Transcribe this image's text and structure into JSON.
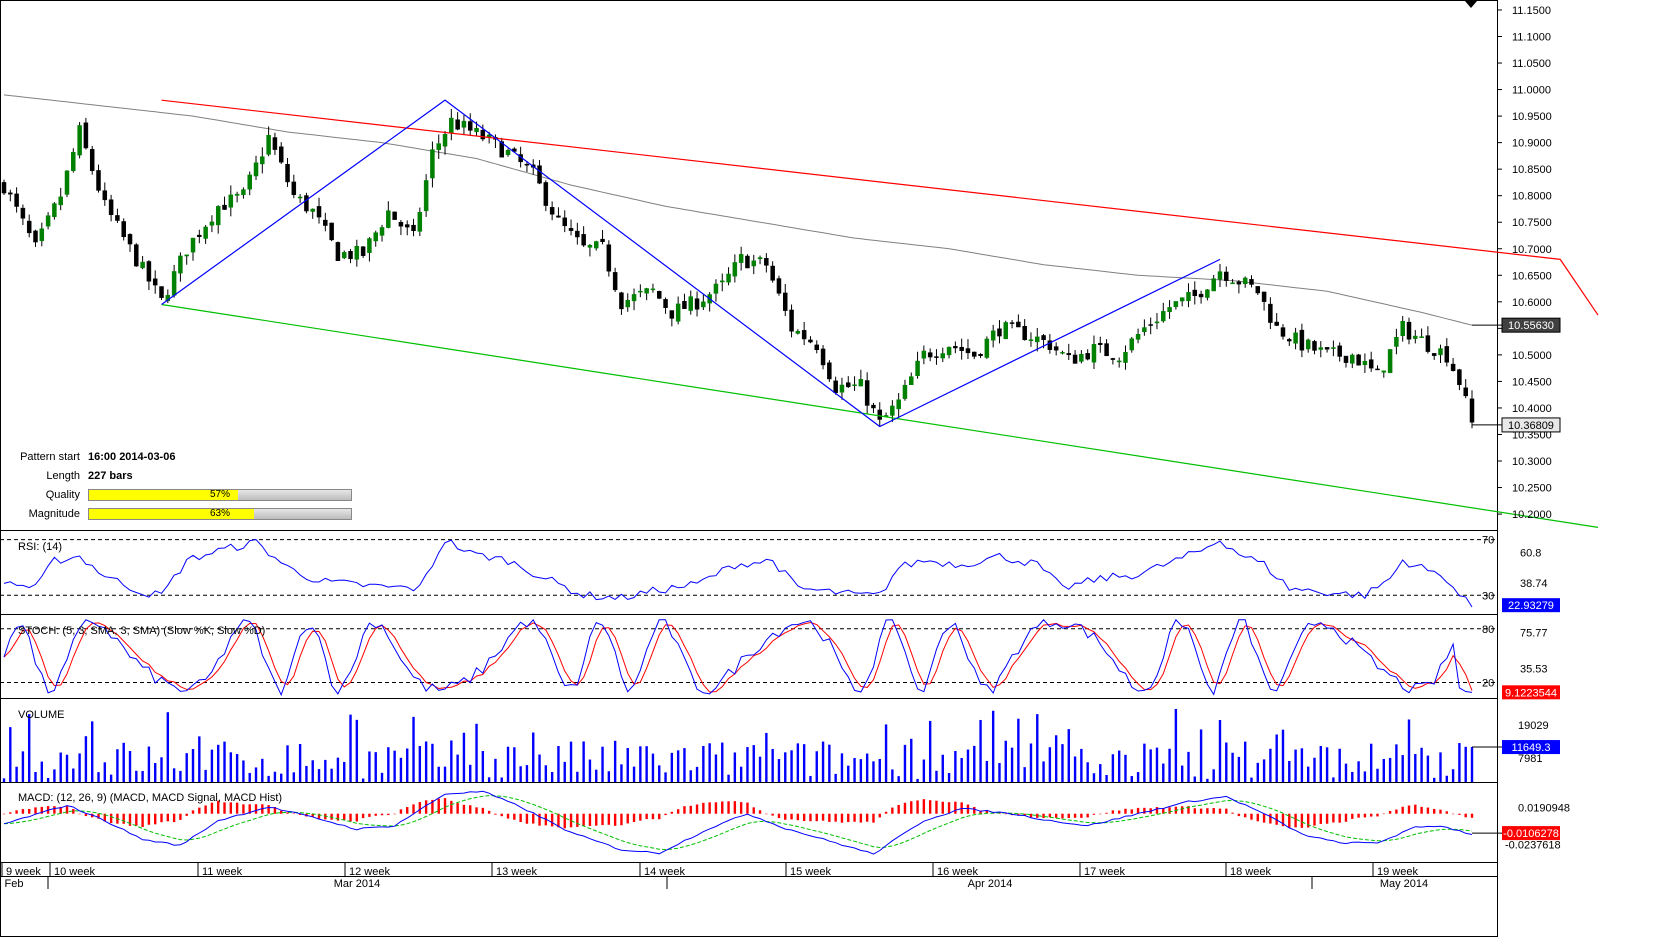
{
  "pattern_info": {
    "start_label": "Pattern start",
    "start_value": "16:00 2014-03-06",
    "length_label": "Length",
    "length_value": "227 bars",
    "quality_label": "Quality",
    "quality_pct": 57,
    "quality_text": "57%",
    "magnitude_label": "Magnitude",
    "magnitude_pct": 63,
    "magnitude_text": "63%"
  },
  "panels": {
    "rsi_title": "RSI: (14)",
    "stoch_title": "STOCH: (5, 3, SMA, 3, SMA) (Slow %K, Slow %D)",
    "volume_title": "VOLUME",
    "macd_title": "MACD: (12, 26, 9) (MACD, MACD Signal, MACD Hist)"
  },
  "colors": {
    "candle_up": "#008000",
    "candle_down": "#000000",
    "resistance": "#ff0000",
    "support": "#00c000",
    "pattern": "#0000ff",
    "ma": "#808080",
    "rsi": "#0000ff",
    "stoch_k": "#0000ff",
    "stoch_d": "#ff0000",
    "volume": "#0000ff",
    "macd": "#0000ff",
    "macd_signal": "#00c000",
    "macd_hist": "#ff0000",
    "tag_dark": "#404040"
  },
  "chart_data": {
    "type": "candlestick",
    "price_axis": {
      "ticks": [
        "11.1500",
        "11.1000",
        "11.0500",
        "11.0000",
        "10.9500",
        "10.9000",
        "10.8500",
        "10.8000",
        "10.7500",
        "10.7000",
        "10.6500",
        "10.6000",
        "10.5500",
        "10.5000",
        "10.4500",
        "10.4000",
        "10.3500",
        "10.3000",
        "10.2500",
        "10.2000"
      ],
      "range": [
        10.17,
        11.165
      ],
      "ma_last_label": "10.55630",
      "last_price_label": "10.36809"
    },
    "time_axis": {
      "week_labels": [
        "9 week",
        "10 week",
        "11 week",
        "12 week",
        "13 week",
        "14 week",
        "15 week",
        "16 week",
        "17 week",
        "18 week",
        "19 week"
      ],
      "month_labels": [
        "Feb",
        "Mar 2014",
        "Apr 2014",
        "May 2014"
      ]
    },
    "pattern": {
      "resistance": [
        [
          25,
          10.98
        ],
        [
          247,
          10.68
        ],
        [
          253,
          10.575
        ]
      ],
      "support": [
        [
          25,
          10.595
        ],
        [
          253,
          10.175
        ]
      ],
      "zigzag": [
        [
          25,
          10.595
        ],
        [
          70,
          10.98
        ],
        [
          139,
          10.365
        ],
        [
          193,
          10.68
        ]
      ]
    },
    "price_keypoints": [
      [
        0,
        10.82
      ],
      [
        5,
        10.7
      ],
      [
        9,
        10.8
      ],
      [
        12,
        10.92
      ],
      [
        16,
        10.78
      ],
      [
        22,
        10.66
      ],
      [
        25,
        10.6
      ],
      [
        29,
        10.7
      ],
      [
        34,
        10.78
      ],
      [
        38,
        10.8
      ],
      [
        42,
        10.91
      ],
      [
        46,
        10.8
      ],
      [
        49,
        10.77
      ],
      [
        53,
        10.69
      ],
      [
        57,
        10.69
      ],
      [
        61,
        10.77
      ],
      [
        65,
        10.72
      ],
      [
        68,
        10.88
      ],
      [
        71,
        10.94
      ],
      [
        76,
        10.91
      ],
      [
        80,
        10.88
      ],
      [
        84,
        10.84
      ],
      [
        88,
        10.75
      ],
      [
        92,
        10.7
      ],
      [
        95,
        10.7
      ],
      [
        98,
        10.6
      ],
      [
        103,
        10.62
      ],
      [
        106,
        10.58
      ],
      [
        110,
        10.6
      ],
      [
        114,
        10.63
      ],
      [
        117,
        10.68
      ],
      [
        121,
        10.67
      ],
      [
        125,
        10.55
      ],
      [
        129,
        10.52
      ],
      [
        132,
        10.44
      ],
      [
        136,
        10.44
      ],
      [
        139,
        10.37
      ],
      [
        142,
        10.41
      ],
      [
        146,
        10.5
      ],
      [
        150,
        10.52
      ],
      [
        154,
        10.5
      ],
      [
        158,
        10.55
      ],
      [
        162,
        10.54
      ],
      [
        166,
        10.52
      ],
      [
        169,
        10.49
      ],
      [
        173,
        10.51
      ],
      [
        177,
        10.5
      ],
      [
        181,
        10.55
      ],
      [
        185,
        10.59
      ],
      [
        189,
        10.61
      ],
      [
        193,
        10.66
      ],
      [
        196,
        10.64
      ],
      [
        199,
        10.62
      ],
      [
        202,
        10.55
      ],
      [
        206,
        10.52
      ],
      [
        210,
        10.5
      ],
      [
        214,
        10.5
      ],
      [
        218,
        10.46
      ],
      [
        222,
        10.55
      ],
      [
        226,
        10.52
      ],
      [
        229,
        10.5
      ],
      [
        231,
        10.45
      ],
      [
        233,
        10.37
      ]
    ],
    "ma_keypoints": [
      [
        0,
        10.99
      ],
      [
        15,
        10.97
      ],
      [
        30,
        10.95
      ],
      [
        45,
        10.92
      ],
      [
        60,
        10.9
      ],
      [
        75,
        10.87
      ],
      [
        90,
        10.82
      ],
      [
        105,
        10.78
      ],
      [
        120,
        10.75
      ],
      [
        135,
        10.72
      ],
      [
        150,
        10.7
      ],
      [
        165,
        10.67
      ],
      [
        180,
        10.65
      ],
      [
        195,
        10.64
      ],
      [
        210,
        10.62
      ],
      [
        225,
        10.58
      ],
      [
        233,
        10.556
      ]
    ],
    "rsi": {
      "ticks": [
        "70",
        "60.8",
        "38.74",
        "30"
      ],
      "last_label": "22.93279",
      "levels": [
        70,
        30
      ],
      "keypoints": [
        [
          0,
          40
        ],
        [
          5,
          35
        ],
        [
          8,
          55
        ],
        [
          12,
          58
        ],
        [
          16,
          44
        ],
        [
          22,
          32
        ],
        [
          25,
          30
        ],
        [
          29,
          55
        ],
        [
          34,
          62
        ],
        [
          40,
          68
        ],
        [
          45,
          50
        ],
        [
          50,
          40
        ],
        [
          55,
          38
        ],
        [
          60,
          36
        ],
        [
          66,
          35
        ],
        [
          70,
          70
        ],
        [
          74,
          60
        ],
        [
          80,
          55
        ],
        [
          86,
          42
        ],
        [
          92,
          30
        ],
        [
          98,
          28
        ],
        [
          103,
          33
        ],
        [
          110,
          38
        ],
        [
          116,
          52
        ],
        [
          122,
          55
        ],
        [
          126,
          35
        ],
        [
          132,
          32
        ],
        [
          136,
          30
        ],
        [
          139,
          30
        ],
        [
          142,
          50
        ],
        [
          146,
          55
        ],
        [
          152,
          52
        ],
        [
          158,
          58
        ],
        [
          164,
          52
        ],
        [
          168,
          35
        ],
        [
          174,
          42
        ],
        [
          180,
          45
        ],
        [
          186,
          55
        ],
        [
          190,
          62
        ],
        [
          193,
          70
        ],
        [
          196,
          60
        ],
        [
          200,
          52
        ],
        [
          204,
          35
        ],
        [
          210,
          32
        ],
        [
          216,
          30
        ],
        [
          220,
          42
        ],
        [
          222,
          55
        ],
        [
          226,
          48
        ],
        [
          229,
          42
        ],
        [
          231,
          30
        ],
        [
          233,
          22
        ]
      ]
    },
    "stoch": {
      "ticks": [
        "80",
        "75.77",
        "35.53",
        "20"
      ],
      "last_label": "9.1223544",
      "levels": [
        80,
        20
      ]
    },
    "volume": {
      "ticks": [
        "19029",
        "7981"
      ],
      "last_label": "11649.3"
    },
    "macd": {
      "ticks": [
        "0.0190948",
        "-0.0106278",
        "-0.0237618"
      ],
      "last_label": "-0.0106278",
      "keypoints": [
        [
          0,
          0.0
        ],
        [
          10,
          0.022
        ],
        [
          16,
          0.004
        ],
        [
          22,
          -0.018
        ],
        [
          28,
          -0.025
        ],
        [
          34,
          0.004
        ],
        [
          42,
          0.02
        ],
        [
          50,
          0.006
        ],
        [
          56,
          -0.006
        ],
        [
          62,
          -0.002
        ],
        [
          70,
          0.035
        ],
        [
          76,
          0.038
        ],
        [
          82,
          0.02
        ],
        [
          90,
          -0.01
        ],
        [
          98,
          -0.03
        ],
        [
          104,
          -0.034
        ],
        [
          112,
          -0.005
        ],
        [
          118,
          0.012
        ],
        [
          124,
          -0.005
        ],
        [
          132,
          -0.022
        ],
        [
          138,
          -0.035
        ],
        [
          146,
          0.004
        ],
        [
          152,
          0.018
        ],
        [
          160,
          0.012
        ],
        [
          166,
          0.004
        ],
        [
          172,
          -0.002
        ],
        [
          180,
          0.012
        ],
        [
          188,
          0.026
        ],
        [
          194,
          0.032
        ],
        [
          200,
          0.012
        ],
        [
          206,
          -0.012
        ],
        [
          212,
          -0.022
        ],
        [
          218,
          -0.022
        ],
        [
          224,
          -0.004
        ],
        [
          228,
          -0.002
        ],
        [
          233,
          -0.012
        ]
      ]
    }
  }
}
